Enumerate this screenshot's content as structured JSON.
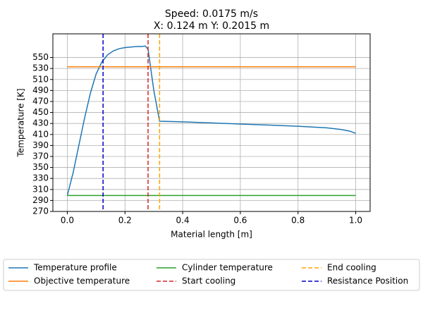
{
  "chart_data": {
    "type": "line",
    "title": [
      "Speed: 0.0175 m/s",
      "X: 0.124 m    Y: 0.2015 m"
    ],
    "x_label": "Material length [m]",
    "y_label": "Temperature [K]",
    "xlim": [
      -0.05,
      1.05
    ],
    "ylim": [
      270,
      593
    ],
    "xticks": [
      {
        "value": 0,
        "label": "0.0"
      },
      0.2,
      0.4,
      0.6,
      0.8,
      {
        "value": 1,
        "label": "1.0"
      }
    ],
    "yticks": [
      270,
      290,
      310,
      330,
      350,
      370,
      390,
      410,
      430,
      450,
      470,
      490,
      510,
      530,
      550
    ],
    "grid": true,
    "series": [
      {
        "name": "Temperature profile",
        "color": "#1f77b4",
        "style": "solid",
        "x": [
          0,
          0.02,
          0.04,
          0.06,
          0.08,
          0.1,
          0.12,
          0.14,
          0.16,
          0.18,
          0.2,
          0.22,
          0.24,
          0.26,
          0.27,
          0.28,
          0.3,
          0.32,
          0.4,
          0.5,
          0.6,
          0.7,
          0.8,
          0.9,
          0.95,
          0.98,
          1.0
        ],
        "values": [
          299,
          340,
          390,
          440,
          485,
          520,
          542,
          555,
          562,
          566,
          568,
          569,
          570,
          570,
          571,
          565,
          490,
          434,
          433,
          431,
          429,
          427,
          425,
          422,
          419,
          416,
          412
        ]
      },
      {
        "name": "Objective temperature",
        "color": "#ff7f0e",
        "style": "solid",
        "x": [
          0,
          1
        ],
        "values": [
          533,
          533
        ]
      },
      {
        "name": "Cylinder temperature",
        "color": "#2ca02c",
        "style": "solid",
        "x": [
          0,
          1
        ],
        "values": [
          299,
          299
        ]
      },
      {
        "name": "Start cooling",
        "color": "#d62728",
        "style": "dashed",
        "vline": 0.28
      },
      {
        "name": "End cooling",
        "color": "#ffa500",
        "style": "dashed",
        "vline": 0.32
      },
      {
        "name": "Resistance Position",
        "color": "#0000cd",
        "style": "dashed",
        "vline": 0.124
      }
    ]
  }
}
